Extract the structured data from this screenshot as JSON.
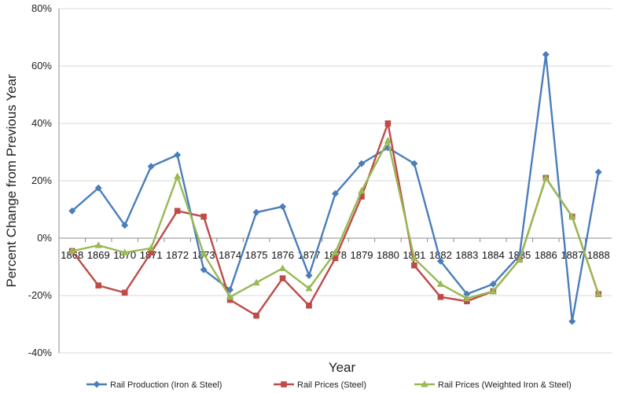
{
  "chart_data": {
    "type": "line",
    "title": "",
    "xlabel": "Year",
    "ylabel": "Percent Change from Previous Year",
    "ylim": [
      -40,
      80
    ],
    "yticks": [
      -40,
      -20,
      0,
      20,
      40,
      60,
      80
    ],
    "ytick_labels": [
      "-40%",
      "-20%",
      "0%",
      "20%",
      "40%",
      "60%",
      "80%"
    ],
    "grid": true,
    "legend_position": "bottom",
    "categories": [
      "1868",
      "1869",
      "1870",
      "1871",
      "1872",
      "1873",
      "1874",
      "1875",
      "1876",
      "1877",
      "1878",
      "1879",
      "1880",
      "1881",
      "1882",
      "1883",
      "1884",
      "1885",
      "1886",
      "1887",
      "1888"
    ],
    "series": [
      {
        "name": "Rail Production (Iron & Steel)",
        "color": "#4a7ebb",
        "marker": "diamond",
        "values": [
          9.5,
          17.5,
          4.5,
          25,
          29,
          -11,
          -18,
          9,
          11,
          -13,
          15.5,
          26,
          31.5,
          26,
          -8,
          -19.5,
          -16,
          -6,
          64,
          -29,
          23
        ]
      },
      {
        "name": "Rail Prices (Steel)",
        "color": "#be4b48",
        "marker": "square",
        "values": [
          -4.5,
          -16.5,
          -19,
          -5,
          9.5,
          7.5,
          -21.5,
          -27,
          -14,
          -23.5,
          -7,
          14.5,
          40,
          -9.5,
          -20.5,
          -22,
          -18.5,
          -7.5,
          21,
          7.5,
          -19.5
        ]
      },
      {
        "name": "Rail Prices (Weighted Iron & Steel)",
        "color": "#98b954",
        "marker": "triangle",
        "values": [
          -4.5,
          -2.5,
          -5,
          -3.5,
          21.5,
          -5.5,
          -20.5,
          -15.5,
          -10.5,
          -17.5,
          -5,
          16.5,
          34,
          -7,
          -16,
          -21,
          -18.5,
          -7.5,
          21,
          7.5,
          -19.5
        ]
      }
    ]
  }
}
